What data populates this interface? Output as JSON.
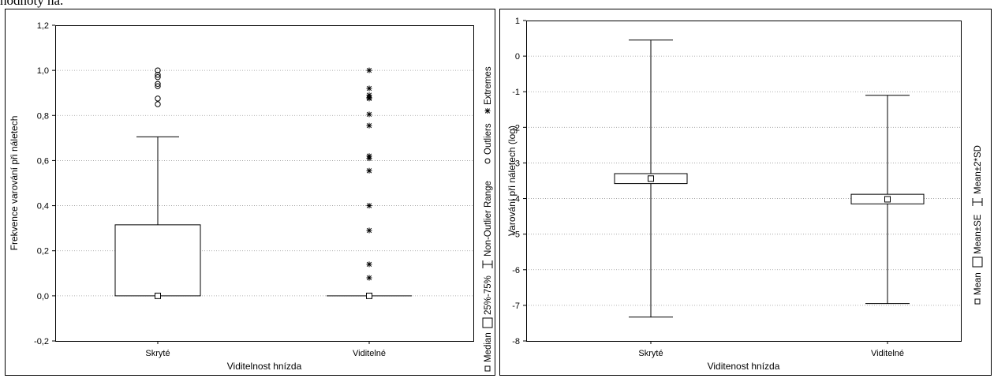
{
  "page": {
    "top_text": "hodnoty na."
  },
  "chart_data": [
    {
      "type": "boxplot",
      "xlabel": "Viditelnost hnízda",
      "ylabel": "Frekvence varování při náletech",
      "ylim": [
        -0.2,
        1.2
      ],
      "yticks": [
        "-0,2",
        "0,0",
        "0,2",
        "0,4",
        "0,6",
        "0,8",
        "1,0",
        "1,2"
      ],
      "ytick_values": [
        -0.2,
        0.0,
        0.2,
        0.4,
        0.6,
        0.8,
        1.0,
        1.2
      ],
      "grid": true,
      "categories": [
        "Skryté",
        "Viditelné"
      ],
      "groups": [
        {
          "median": 0.0,
          "q1": 0.0,
          "q3": 0.315,
          "whisker_low": 0.0,
          "whisker_high": 0.705,
          "outliers": [
            0.85,
            0.875,
            0.93,
            0.94,
            0.97,
            0.98,
            1.0
          ],
          "extremes": []
        },
        {
          "median": 0.0,
          "q1": 0.0,
          "q3": 0.0,
          "whisker_low": 0.0,
          "whisker_high": 0.0,
          "outliers": [],
          "extremes": [
            0.08,
            0.14,
            0.29,
            0.4,
            0.555,
            0.61,
            0.62,
            0.755,
            0.805,
            0.875,
            0.88,
            0.89,
            0.92,
            1.0
          ]
        }
      ],
      "legend": [
        "Median",
        "25%-75%",
        "Non-Outlier Range",
        "Outliers",
        "Extremes"
      ],
      "legend_position": "right (vertical)"
    },
    {
      "type": "mean-error",
      "xlabel": "Viditenost hnízda",
      "ylabel": "Varování při náletech (log)",
      "ylim": [
        -8,
        1
      ],
      "yticks": [
        "-8",
        "-7",
        "-6",
        "-5",
        "-4",
        "-3",
        "-2",
        "-1",
        "0",
        "1"
      ],
      "ytick_values": [
        -8,
        -7,
        -6,
        -5,
        -4,
        -3,
        -2,
        -1,
        0,
        1
      ],
      "grid": true,
      "categories": [
        "Skryté",
        "Viditelné"
      ],
      "groups": [
        {
          "mean": -3.44,
          "se_low": -3.58,
          "se_high": -3.3,
          "sd2_low": -7.33,
          "sd2_high": 0.45
        },
        {
          "mean": -4.02,
          "se_low": -4.15,
          "se_high": -3.88,
          "sd2_low": -6.95,
          "sd2_high": -1.1
        }
      ],
      "legend": [
        "Mean",
        "Mean±SE",
        "Mean±2*SD"
      ],
      "legend_position": "right (vertical)"
    }
  ]
}
